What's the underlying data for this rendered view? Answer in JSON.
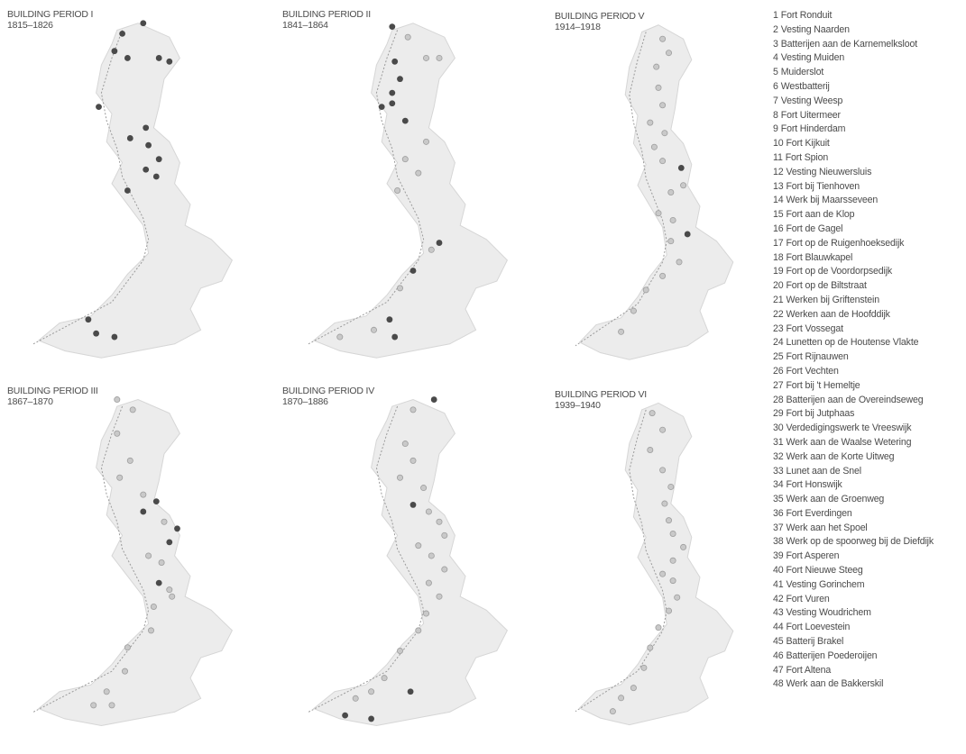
{
  "panels": [
    {
      "id": "p1",
      "title": "BUILDING PERIOD I",
      "years": "1815–1826",
      "dots": [
        [
          0.52,
          0.02,
          2
        ],
        [
          0.44,
          0.05,
          2
        ],
        [
          0.41,
          0.1,
          2
        ],
        [
          0.58,
          0.12,
          2
        ],
        [
          0.46,
          0.12,
          2
        ],
        [
          0.62,
          0.13,
          2
        ],
        [
          0.35,
          0.26,
          2
        ],
        [
          0.53,
          0.32,
          2
        ],
        [
          0.47,
          0.35,
          2
        ],
        [
          0.54,
          0.37,
          2
        ],
        [
          0.58,
          0.41,
          2
        ],
        [
          0.53,
          0.44,
          2
        ],
        [
          0.57,
          0.46,
          2
        ],
        [
          0.46,
          0.5,
          2
        ],
        [
          0.31,
          0.87,
          2
        ],
        [
          0.34,
          0.91,
          2
        ],
        [
          0.41,
          0.92,
          2
        ]
      ]
    },
    {
      "id": "p2",
      "title": "BUILDING PERIOD II",
      "years": "1841–1864",
      "dots": [
        [
          0.42,
          0.03,
          2
        ],
        [
          0.48,
          0.06,
          1
        ],
        [
          0.6,
          0.12,
          1
        ],
        [
          0.43,
          0.13,
          2
        ],
        [
          0.55,
          0.12,
          1
        ],
        [
          0.45,
          0.18,
          2
        ],
        [
          0.42,
          0.22,
          2
        ],
        [
          0.38,
          0.26,
          2
        ],
        [
          0.42,
          0.25,
          2
        ],
        [
          0.47,
          0.3,
          2
        ],
        [
          0.55,
          0.36,
          1
        ],
        [
          0.47,
          0.41,
          1
        ],
        [
          0.52,
          0.45,
          1
        ],
        [
          0.44,
          0.5,
          1
        ],
        [
          0.6,
          0.65,
          2
        ],
        [
          0.57,
          0.67,
          1
        ],
        [
          0.5,
          0.73,
          2
        ],
        [
          0.45,
          0.78,
          1
        ],
        [
          0.41,
          0.87,
          2
        ],
        [
          0.35,
          0.9,
          1
        ],
        [
          0.43,
          0.92,
          2
        ],
        [
          0.22,
          0.92,
          1
        ]
      ]
    },
    {
      "id": "p3",
      "title": "BUILDING PERIOD V",
      "years": "1914–1918",
      "dots": [
        [
          0.52,
          0.06,
          1
        ],
        [
          0.55,
          0.1,
          1
        ],
        [
          0.49,
          0.14,
          1
        ],
        [
          0.5,
          0.2,
          1
        ],
        [
          0.52,
          0.25,
          1
        ],
        [
          0.46,
          0.3,
          1
        ],
        [
          0.53,
          0.33,
          1
        ],
        [
          0.48,
          0.37,
          1
        ],
        [
          0.52,
          0.41,
          1
        ],
        [
          0.61,
          0.43,
          2
        ],
        [
          0.62,
          0.48,
          1
        ],
        [
          0.56,
          0.5,
          1
        ],
        [
          0.5,
          0.56,
          1
        ],
        [
          0.57,
          0.58,
          1
        ],
        [
          0.64,
          0.62,
          2
        ],
        [
          0.56,
          0.64,
          1
        ],
        [
          0.6,
          0.7,
          1
        ],
        [
          0.52,
          0.74,
          1
        ],
        [
          0.44,
          0.78,
          1
        ],
        [
          0.38,
          0.84,
          1
        ],
        [
          0.32,
          0.9,
          1
        ]
      ]
    },
    {
      "id": "p4",
      "title": "BUILDING PERIOD III",
      "years": "1867–1870",
      "dots": [
        [
          0.42,
          0.02,
          1
        ],
        [
          0.48,
          0.05,
          1
        ],
        [
          0.42,
          0.12,
          1
        ],
        [
          0.47,
          0.2,
          1
        ],
        [
          0.43,
          0.25,
          1
        ],
        [
          0.52,
          0.3,
          1
        ],
        [
          0.57,
          0.32,
          2
        ],
        [
          0.52,
          0.35,
          2
        ],
        [
          0.6,
          0.38,
          1
        ],
        [
          0.65,
          0.4,
          2
        ],
        [
          0.62,
          0.44,
          2
        ],
        [
          0.54,
          0.48,
          1
        ],
        [
          0.59,
          0.5,
          1
        ],
        [
          0.58,
          0.56,
          2
        ],
        [
          0.62,
          0.58,
          1
        ],
        [
          0.63,
          0.6,
          1
        ],
        [
          0.56,
          0.63,
          1
        ],
        [
          0.55,
          0.7,
          1
        ],
        [
          0.46,
          0.75,
          1
        ],
        [
          0.45,
          0.82,
          1
        ],
        [
          0.38,
          0.88,
          1
        ],
        [
          0.33,
          0.92,
          1
        ],
        [
          0.4,
          0.92,
          1
        ]
      ]
    },
    {
      "id": "p5",
      "title": "BUILDING PERIOD IV",
      "years": "1870–1886",
      "dots": [
        [
          0.58,
          0.02,
          2
        ],
        [
          0.5,
          0.05,
          1
        ],
        [
          0.47,
          0.15,
          1
        ],
        [
          0.5,
          0.2,
          1
        ],
        [
          0.45,
          0.25,
          1
        ],
        [
          0.54,
          0.28,
          1
        ],
        [
          0.5,
          0.33,
          2
        ],
        [
          0.56,
          0.35,
          1
        ],
        [
          0.6,
          0.38,
          1
        ],
        [
          0.62,
          0.42,
          1
        ],
        [
          0.52,
          0.45,
          1
        ],
        [
          0.57,
          0.48,
          1
        ],
        [
          0.62,
          0.52,
          1
        ],
        [
          0.56,
          0.56,
          1
        ],
        [
          0.6,
          0.6,
          1
        ],
        [
          0.55,
          0.65,
          1
        ],
        [
          0.52,
          0.7,
          1
        ],
        [
          0.45,
          0.76,
          1
        ],
        [
          0.39,
          0.84,
          1
        ],
        [
          0.34,
          0.88,
          1
        ],
        [
          0.28,
          0.9,
          1
        ],
        [
          0.24,
          0.95,
          2
        ],
        [
          0.34,
          0.96,
          2
        ],
        [
          0.49,
          0.88,
          2
        ]
      ]
    },
    {
      "id": "p6",
      "title": "BUILDING PERIOD VI",
      "years": "1939–1940",
      "dots": [
        [
          0.47,
          0.05,
          1
        ],
        [
          0.52,
          0.1,
          1
        ],
        [
          0.46,
          0.16,
          1
        ],
        [
          0.52,
          0.22,
          1
        ],
        [
          0.56,
          0.27,
          1
        ],
        [
          0.53,
          0.32,
          1
        ],
        [
          0.55,
          0.37,
          1
        ],
        [
          0.57,
          0.41,
          1
        ],
        [
          0.62,
          0.45,
          1
        ],
        [
          0.57,
          0.49,
          1
        ],
        [
          0.52,
          0.53,
          1
        ],
        [
          0.57,
          0.55,
          1
        ],
        [
          0.59,
          0.6,
          1
        ],
        [
          0.55,
          0.64,
          1
        ],
        [
          0.5,
          0.69,
          1
        ],
        [
          0.46,
          0.75,
          1
        ],
        [
          0.43,
          0.81,
          1
        ],
        [
          0.38,
          0.87,
          1
        ],
        [
          0.32,
          0.9,
          1
        ],
        [
          0.28,
          0.94,
          1
        ]
      ]
    }
  ],
  "legend": [
    {
      "num": "1",
      "name": "Fort Ronduit"
    },
    {
      "num": "2",
      "name": "Vesting Naarden"
    },
    {
      "num": "3",
      "name": "Batterijen aan de Karnemelksloot"
    },
    {
      "num": "4",
      "name": "Vesting Muiden"
    },
    {
      "num": "5",
      "name": "Muiderslot"
    },
    {
      "num": "6",
      "name": "Westbatterij"
    },
    {
      "num": "7",
      "name": "Vesting Weesp"
    },
    {
      "num": "8",
      "name": "Fort Uitermeer"
    },
    {
      "num": "9",
      "name": "Fort Hinderdam"
    },
    {
      "num": "10",
      "name": "Fort Kijkuit"
    },
    {
      "num": "11",
      "name": "Fort Spion"
    },
    {
      "num": "12",
      "name": "Vesting Nieuwersluis"
    },
    {
      "num": "13",
      "name": "Fort bij Tienhoven"
    },
    {
      "num": "14",
      "name": "Werk bij Maarsseveen"
    },
    {
      "num": "15",
      "name": "Fort aan de Klop"
    },
    {
      "num": "16",
      "name": "Fort de Gagel"
    },
    {
      "num": "17",
      "name": "Fort op de Ruigenhoeksedijk"
    },
    {
      "num": "18",
      "name": "Fort Blauwkapel"
    },
    {
      "num": "19",
      "name": "Fort op de Voordorpsedijk"
    },
    {
      "num": "20",
      "name": "Fort op de Biltstraat"
    },
    {
      "num": "21",
      "name": "Werken bij Griftenstein"
    },
    {
      "num": "22",
      "name": "Werken aan de Hoofddijk"
    },
    {
      "num": "23",
      "name": "Fort Vossegat"
    },
    {
      "num": "24",
      "name": "Lunetten op de Houtense Vlakte"
    },
    {
      "num": "25",
      "name": "Fort Rijnauwen"
    },
    {
      "num": "26",
      "name": "Fort Vechten"
    },
    {
      "num": "27",
      "name": "Fort bij 't Hemeltje"
    },
    {
      "num": "28",
      "name": "Batterijen aan de Overeindseweg"
    },
    {
      "num": "29",
      "name": "Fort bij Jutphaas"
    },
    {
      "num": "30",
      "name": "Verdedigingswerk te Vreeswijk"
    },
    {
      "num": "31",
      "name": "Werk aan de Waalse Wetering"
    },
    {
      "num": "32",
      "name": "Werk aan de Korte Uitweg"
    },
    {
      "num": "33",
      "name": "Lunet aan de Snel"
    },
    {
      "num": "34",
      "name": "Fort Honswijk"
    },
    {
      "num": "35",
      "name": "Werk aan de Groenweg"
    },
    {
      "num": "36",
      "name": "Fort Everdingen"
    },
    {
      "num": "37",
      "name": "Werk aan het Spoel"
    },
    {
      "num": "38",
      "name": "Werk op de spoorweg bij de Diefdijk"
    },
    {
      "num": "39",
      "name": "Fort Asperen"
    },
    {
      "num": "40",
      "name": "Fort Nieuwe Steeg"
    },
    {
      "num": "41",
      "name": "Vesting Gorinchem"
    },
    {
      "num": "42",
      "name": "Fort Vuren"
    },
    {
      "num": "43",
      "name": "Vesting Woudrichem"
    },
    {
      "num": "44",
      "name": "Fort Loevestein"
    },
    {
      "num": "45",
      "name": "Batterij Brakel"
    },
    {
      "num": "46",
      "name": "Batterijen Poederoijen"
    },
    {
      "num": "47",
      "name": "Fort Altena"
    },
    {
      "num": "48",
      "name": "Werk aan de Bakkerskil"
    }
  ],
  "colors": {
    "land": "#ececec",
    "land_stroke": "#d6d6d6",
    "line": "#9a9a9a",
    "dot_dark": "#4a4a4a",
    "dot_light": "#c9c9c9",
    "dot_light_stroke": "#9e9e9e"
  }
}
